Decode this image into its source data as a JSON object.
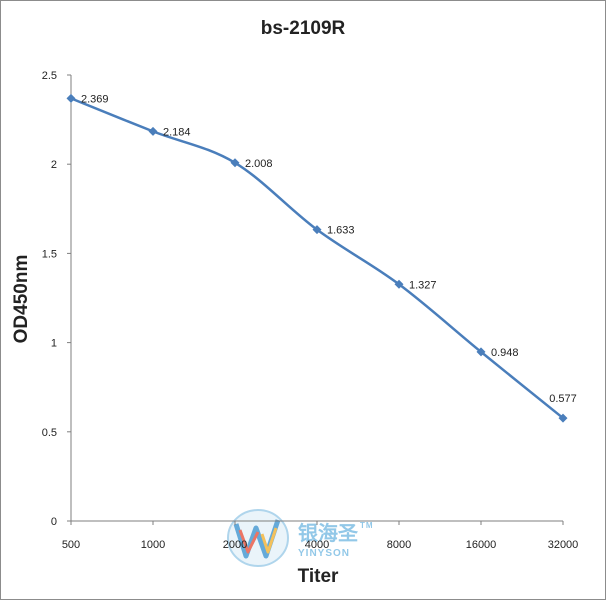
{
  "chart_data": {
    "type": "line",
    "title": "bs-2109R",
    "xlabel": "Titer",
    "ylabel": "OD450nm",
    "categories": [
      "500",
      "1000",
      "2000",
      "4000",
      "8000",
      "16000",
      "32000"
    ],
    "series": [
      {
        "values": [
          2.369,
          2.184,
          2.008,
          1.633,
          1.327,
          0.948,
          0.577
        ]
      }
    ],
    "data_labels": [
      "2.369",
      "2.184",
      "2.008",
      "1.633",
      "1.327",
      "0.948",
      "0.577"
    ],
    "ylim": [
      0,
      2.5
    ],
    "yticks": [
      "0",
      "0.5",
      "1",
      "1.5",
      "2",
      "2.5"
    ],
    "grid": false,
    "legend": "none",
    "line_color": "#4a7ebb"
  },
  "watermark": {
    "brand": "银海圣",
    "trademark": "TM",
    "sub": "YINYSON"
  }
}
